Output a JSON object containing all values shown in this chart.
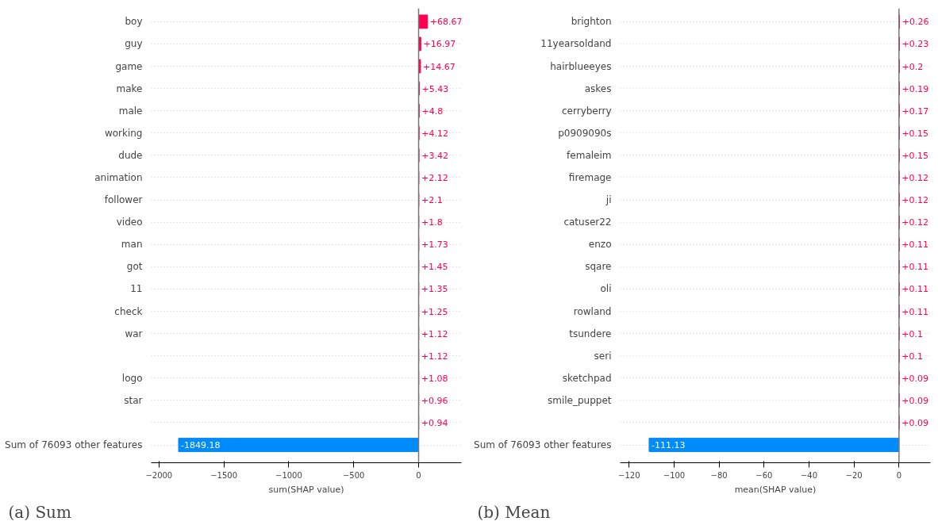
{
  "chart_data": [
    {
      "type": "bar",
      "orientation": "horizontal",
      "title": "(a) Sum",
      "xlabel": "sum(SHAP value)",
      "categories": [
        "boy",
        "guy",
        "game",
        "make",
        "male",
        "working",
        "dude",
        "animation",
        "follower",
        "video",
        "man",
        "got",
        "11",
        "check",
        "war",
        null,
        "logo",
        "star",
        null,
        "Sum of 76093 other features"
      ],
      "values": [
        68.67,
        16.97,
        14.67,
        5.43,
        4.8,
        4.12,
        3.42,
        2.12,
        2.1,
        1.8,
        1.73,
        1.45,
        1.35,
        1.25,
        1.12,
        1.12,
        1.08,
        0.96,
        0.94,
        -1849.18
      ],
      "colors": [
        "#ff0051",
        "#ff0051",
        "#ff0051",
        "#ff0051",
        "#ff0051",
        "#ff0051",
        "#ff0051",
        "#ff0051",
        "#ff0051",
        "#ff0051",
        "#ff0051",
        "#ff0051",
        "#ff0051",
        "#ff0051",
        "#ff0051",
        "#ff0051",
        "#ff0051",
        "#ff0051",
        "#ff0051",
        "#008bfb"
      ],
      "value_labels": [
        "+68.67",
        "+16.97",
        "+14.67",
        "+5.43",
        "+4.8",
        "+4.12",
        "+3.42",
        "+2.12",
        "+2.1",
        "+1.8",
        "+1.73",
        "+1.45",
        "+1.35",
        "+1.25",
        "+1.12",
        "+1.12",
        "+1.08",
        "+0.96",
        "+0.94",
        "-1849.18"
      ],
      "xlim": [
        -2060,
        330
      ],
      "xticks": [
        -2000,
        -1500,
        -1000,
        -500,
        0
      ],
      "grid": "y",
      "ref_lines": [
        {
          "axis": "x",
          "value": 0
        }
      ]
    },
    {
      "type": "bar",
      "orientation": "horizontal",
      "title": "(b) Mean",
      "xlabel": "mean(SHAP value)",
      "categories": [
        "brighton",
        "11yearsoldand",
        "hairblueeyes",
        "askes",
        "cerryberry",
        "p0909090s",
        "femaleim",
        "firemage",
        "ji",
        "catuser22",
        "enzo",
        "sqare",
        "oli",
        "rowland",
        "tsundere",
        "seri",
        "sketchpad",
        "smile_puppet",
        null,
        "Sum of 76093 other features"
      ],
      "values": [
        0.26,
        0.23,
        0.2,
        0.19,
        0.17,
        0.15,
        0.15,
        0.12,
        0.12,
        0.12,
        0.11,
        0.11,
        0.11,
        0.11,
        0.1,
        0.1,
        0.09,
        0.09,
        0.09,
        -111.13
      ],
      "colors": [
        "#ff0051",
        "#ff0051",
        "#ff0051",
        "#ff0051",
        "#ff0051",
        "#ff0051",
        "#ff0051",
        "#ff0051",
        "#ff0051",
        "#ff0051",
        "#ff0051",
        "#ff0051",
        "#ff0051",
        "#ff0051",
        "#ff0051",
        "#ff0051",
        "#ff0051",
        "#ff0051",
        "#ff0051",
        "#008bfb"
      ],
      "value_labels": [
        "+0.26",
        "+0.23",
        "+0.2",
        "+0.19",
        "+0.17",
        "+0.15",
        "+0.15",
        "+0.12",
        "+0.12",
        "+0.12",
        "+0.11",
        "+0.11",
        "+0.11",
        "+0.11",
        "+0.1",
        "+0.1",
        "+0.09",
        "+0.09",
        "+0.09",
        "-111.13"
      ],
      "xlim": [
        -124,
        14
      ],
      "xticks": [
        -120,
        -100,
        -80,
        -60,
        -40,
        -20,
        0
      ],
      "grid": "y",
      "ref_lines": [
        {
          "axis": "x",
          "value": 0
        }
      ]
    }
  ]
}
